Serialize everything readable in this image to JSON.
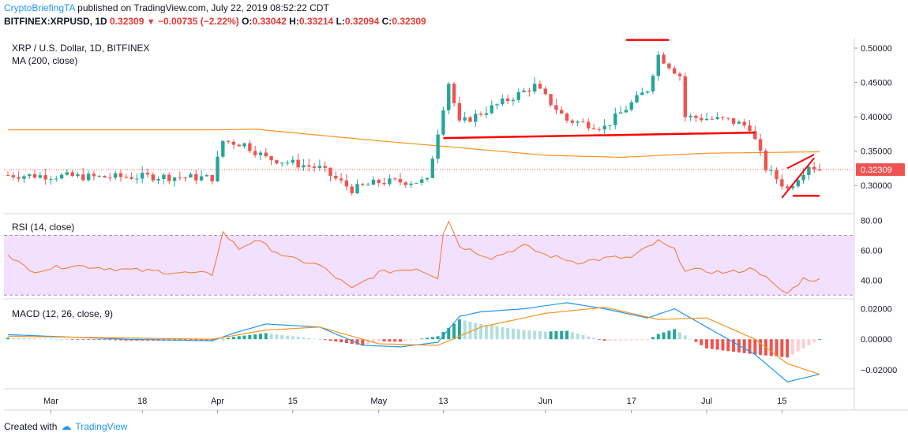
{
  "header": {
    "author": "CryptoBriefingTA",
    "published": "published on TradingView.com, July 22, 2019 08:52:22 CDT",
    "symbol": "BITFINEX:XRPUSD, 1D",
    "last": "0.32309",
    "change": "−0.00735 (−2.22%)",
    "o_label": "O:",
    "o": "0.33042",
    "h_label": "H:",
    "h": "0.33214",
    "l_label": "L:",
    "l": "0.32094",
    "c_label": "C:",
    "c": "0.32309"
  },
  "panes": {
    "price_title": "XRP / U.S. Dollar, 1D, BITFINEX",
    "ma_label": "MA (200, close)",
    "rsi_label": "RSI (14, close)",
    "macd_label": "MACD (12, 26, close, 9)"
  },
  "footer": {
    "created_with": "Created with",
    "brand": "TradingView"
  },
  "colors": {
    "up": "#26a69a",
    "down": "#ef5350",
    "ma": "#f7931e",
    "rsi": "#f4772a",
    "rsi_band": "#f2e0ff",
    "macd": "#2196f3",
    "signal": "#f7931e",
    "drawing": "#ff0000",
    "price_line": "#ff5252"
  },
  "chart_data": [
    {
      "type": "candlestick",
      "title": "XRP / U.S. Dollar, 1D, BITFINEX",
      "ylim": [
        0.26,
        0.515
      ],
      "y_ticks": [
        "0.30000",
        "0.35000",
        "0.40000",
        "0.45000",
        "0.50000"
      ],
      "last_price_label": "0.32309",
      "x_tick_labels": [
        "Mar",
        "18",
        "Apr",
        "15",
        "May",
        "13",
        "Jun",
        "17",
        "Jul",
        "15"
      ],
      "x_start": "2019-02-21",
      "x_end": "2019-07-22",
      "ohlc_keypoints": [
        [
          "2019-02-21",
          0.315
        ],
        [
          "2019-03-01",
          0.314
        ],
        [
          "2019-03-10",
          0.312
        ],
        [
          "2019-03-20",
          0.313
        ],
        [
          "2019-03-31",
          0.311
        ],
        [
          "2019-04-02",
          0.365
        ],
        [
          "2019-04-06",
          0.36
        ],
        [
          "2019-04-10",
          0.34
        ],
        [
          "2019-04-20",
          0.325
        ],
        [
          "2019-04-26",
          0.294
        ],
        [
          "2019-05-01",
          0.305
        ],
        [
          "2019-05-10",
          0.306
        ],
        [
          "2019-05-13",
          0.415
        ],
        [
          "2019-05-14",
          0.45
        ],
        [
          "2019-05-16",
          0.39
        ],
        [
          "2019-05-25",
          0.425
        ],
        [
          "2019-05-30",
          0.445
        ],
        [
          "2019-06-05",
          0.395
        ],
        [
          "2019-06-12",
          0.385
        ],
        [
          "2019-06-20",
          0.44
        ],
        [
          "2019-06-22",
          0.49
        ],
        [
          "2019-06-26",
          0.46
        ],
        [
          "2019-06-27",
          0.4
        ],
        [
          "2019-07-05",
          0.395
        ],
        [
          "2019-07-09",
          0.385
        ],
        [
          "2019-07-12",
          0.325
        ],
        [
          "2019-07-16",
          0.295
        ],
        [
          "2019-07-20",
          0.33
        ],
        [
          "2019-07-22",
          0.323
        ]
      ],
      "ma200": [
        [
          "2019-02-21",
          0.381
        ],
        [
          "2019-04-01",
          0.381
        ],
        [
          "2019-04-08",
          0.382
        ],
        [
          "2019-05-01",
          0.365
        ],
        [
          "2019-05-13",
          0.357
        ],
        [
          "2019-06-01",
          0.344
        ],
        [
          "2019-06-15",
          0.341
        ],
        [
          "2019-07-01",
          0.347
        ],
        [
          "2019-07-22",
          0.349
        ]
      ]
    },
    {
      "type": "line",
      "title": "RSI (14, close)",
      "ylim": [
        28,
        84
      ],
      "y_ticks": [
        "40.00",
        "60.00",
        "80.00"
      ],
      "band": [
        30,
        70
      ],
      "series": [
        {
          "values": [
            [
              "2019-02-21",
              58
            ],
            [
              "2019-02-25",
              46
            ],
            [
              "2019-03-05",
              50
            ],
            [
              "2019-03-15",
              47
            ],
            [
              "2019-03-25",
              45
            ],
            [
              "2019-03-31",
              44
            ],
            [
              "2019-04-02",
              72
            ],
            [
              "2019-04-05",
              61
            ],
            [
              "2019-04-08",
              67
            ],
            [
              "2019-04-14",
              55
            ],
            [
              "2019-04-20",
              50
            ],
            [
              "2019-04-26",
              34
            ],
            [
              "2019-05-01",
              45
            ],
            [
              "2019-05-08",
              48
            ],
            [
              "2019-05-12",
              42
            ],
            [
              "2019-05-13",
              72
            ],
            [
              "2019-05-14",
              80
            ],
            [
              "2019-05-16",
              63
            ],
            [
              "2019-05-22",
              55
            ],
            [
              "2019-05-28",
              63
            ],
            [
              "2019-06-01",
              57
            ],
            [
              "2019-06-07",
              52
            ],
            [
              "2019-06-13",
              55
            ],
            [
              "2019-06-17",
              55
            ],
            [
              "2019-06-20",
              62
            ],
            [
              "2019-06-22",
              66
            ],
            [
              "2019-06-25",
              60
            ],
            [
              "2019-06-27",
              47
            ],
            [
              "2019-07-05",
              45
            ],
            [
              "2019-07-10",
              48
            ],
            [
              "2019-07-14",
              35
            ],
            [
              "2019-07-16",
              31
            ],
            [
              "2019-07-19",
              41
            ],
            [
              "2019-07-22",
              40
            ]
          ]
        }
      ]
    },
    {
      "type": "line+bar",
      "title": "MACD (12, 26, close, 9)",
      "ylim": [
        -0.032,
        0.026
      ],
      "y_ticks": [
        "-0.02000",
        "0.00000",
        "0.02000"
      ],
      "series": [
        {
          "values": [
            [
              "2019-02-21",
              0.003
            ],
            [
              "2019-03-15",
              0.0
            ],
            [
              "2019-03-31",
              -0.001
            ],
            [
              "2019-04-04",
              0.004
            ],
            [
              "2019-04-10",
              0.01
            ],
            [
              "2019-04-20",
              0.008
            ],
            [
              "2019-04-28",
              -0.004
            ],
            [
              "2019-05-05",
              -0.005
            ],
            [
              "2019-05-12",
              -0.002
            ],
            [
              "2019-05-16",
              0.015
            ],
            [
              "2019-05-20",
              0.018
            ],
            [
              "2019-05-28",
              0.02
            ],
            [
              "2019-06-05",
              0.024
            ],
            [
              "2019-06-12",
              0.02
            ],
            [
              "2019-06-20",
              0.014
            ],
            [
              "2019-06-25",
              0.02
            ],
            [
              "2019-07-01",
              0.008
            ],
            [
              "2019-07-10",
              -0.01
            ],
            [
              "2019-07-16",
              -0.028
            ],
            [
              "2019-07-22",
              -0.023
            ]
          ]
        },
        {
          "values": [
            [
              "2019-02-21",
              0.002
            ],
            [
              "2019-03-31",
              0.0
            ],
            [
              "2019-04-10",
              0.006
            ],
            [
              "2019-04-20",
              0.008
            ],
            [
              "2019-05-01",
              -0.003
            ],
            [
              "2019-05-12",
              -0.004
            ],
            [
              "2019-05-20",
              0.008
            ],
            [
              "2019-06-01",
              0.017
            ],
            [
              "2019-06-12",
              0.021
            ],
            [
              "2019-06-22",
              0.013
            ],
            [
              "2019-07-01",
              0.014
            ],
            [
              "2019-07-10",
              0.0
            ],
            [
              "2019-07-16",
              -0.016
            ],
            [
              "2019-07-22",
              -0.023
            ]
          ]
        }
      ]
    }
  ]
}
